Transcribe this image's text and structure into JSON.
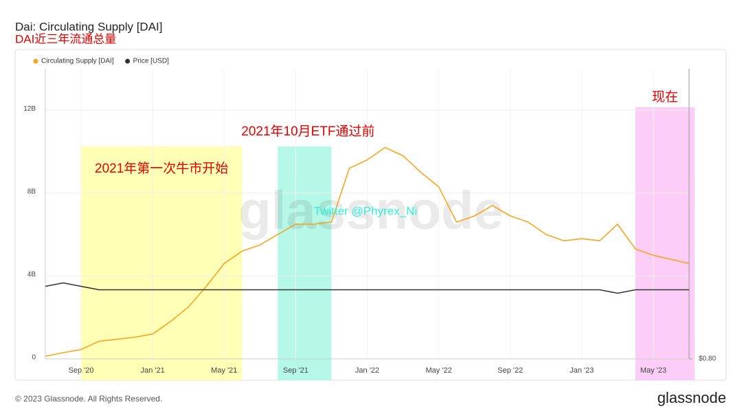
{
  "chart_data": {
    "type": "line",
    "title": "Dai: Circulating Supply [DAI]",
    "subtitle": "DAI近三年流通总量",
    "x": [
      "2020-07",
      "2020-08",
      "2020-09",
      "2020-10",
      "2020-11",
      "2020-12",
      "2021-01",
      "2021-02",
      "2021-03",
      "2021-04",
      "2021-05",
      "2021-06",
      "2021-07",
      "2021-08",
      "2021-09",
      "2021-10",
      "2021-11",
      "2021-12",
      "2022-01",
      "2022-02",
      "2022-03",
      "2022-04",
      "2022-05",
      "2022-06",
      "2022-07",
      "2022-08",
      "2022-09",
      "2022-10",
      "2022-11",
      "2022-12",
      "2023-01",
      "2023-02",
      "2023-03",
      "2023-04",
      "2023-05",
      "2023-06",
      "2023-07"
    ],
    "series": [
      {
        "name": "Circulating Supply [DAI]",
        "color": "#f5a623",
        "axis": "y",
        "values": [
          130000000,
          300000000,
          450000000,
          850000000,
          950000000,
          1050000000,
          1200000000,
          1800000000,
          2500000000,
          3500000000,
          4600000000,
          5200000000,
          5500000000,
          6000000000,
          6500000000,
          6500000000,
          6600000000,
          9200000000,
          9600000000,
          10200000000,
          9800000000,
          9000000000,
          8300000000,
          6600000000,
          6900000000,
          7400000000,
          6900000000,
          6600000000,
          6000000000,
          5700000000,
          5800000000,
          5700000000,
          6500000000,
          5300000000,
          5000000000,
          4800000000,
          4600000000
        ]
      },
      {
        "name": "Price [USD]",
        "color": "#333333",
        "axis": "y2",
        "values": [
          1.01,
          1.02,
          1.01,
          1.0,
          1.0,
          1.0,
          1.0,
          1.0,
          1.0,
          1.0,
          1.0,
          1.0,
          1.0,
          1.0,
          1.0,
          1.0,
          1.0,
          1.0,
          1.0,
          1.0,
          1.0,
          1.0,
          1.0,
          1.0,
          1.0,
          1.0,
          1.0,
          1.0,
          1.0,
          1.0,
          1.0,
          1.0,
          0.99,
          1.0,
          1.0,
          1.0,
          1.0
        ]
      }
    ],
    "xlim": [
      "2020-07",
      "2023-07"
    ],
    "xticks": [
      {
        "value": "2020-09",
        "label": "Sep '20"
      },
      {
        "value": "2021-01",
        "label": "Jan '21"
      },
      {
        "value": "2021-05",
        "label": "May '21"
      },
      {
        "value": "2021-09",
        "label": "Sep '21"
      },
      {
        "value": "2022-01",
        "label": "Jan '22"
      },
      {
        "value": "2022-05",
        "label": "May '22"
      },
      {
        "value": "2022-09",
        "label": "Sep '22"
      },
      {
        "value": "2023-01",
        "label": "Jan '23"
      },
      {
        "value": "2023-05",
        "label": "May '23"
      }
    ],
    "ylim": [
      0,
      14000000000
    ],
    "yticks": [
      0,
      {
        "value": 4000000000,
        "label": "4B"
      },
      {
        "value": 8000000000,
        "label": "8B"
      },
      {
        "value": 12000000000,
        "label": "12B"
      }
    ],
    "y2lim": [
      0.8,
      1.64
    ],
    "y2ticks": [
      {
        "value": 0.8,
        "label": "$0.80"
      }
    ],
    "grid": true,
    "legend": "top-left",
    "annotations": [
      {
        "text": "2021年第一次牛市开始",
        "start": "2020-09",
        "end": "2021-06",
        "color": "#ffffa8"
      },
      {
        "text": "2021年10月ETF通过前",
        "start": "2021-08",
        "end": "2021-11",
        "color": "#a8f7e4"
      },
      {
        "text": "现在",
        "start": "2023-04",
        "end": "2023-07",
        "color": "#fbc4f5"
      }
    ],
    "watermark": "glassnode",
    "credit": "Twitter @Phyrex_Ni"
  },
  "footer": {
    "copyright": "© 2023 Glassnode. All Rights Reserved.",
    "logo": "glassnode"
  }
}
